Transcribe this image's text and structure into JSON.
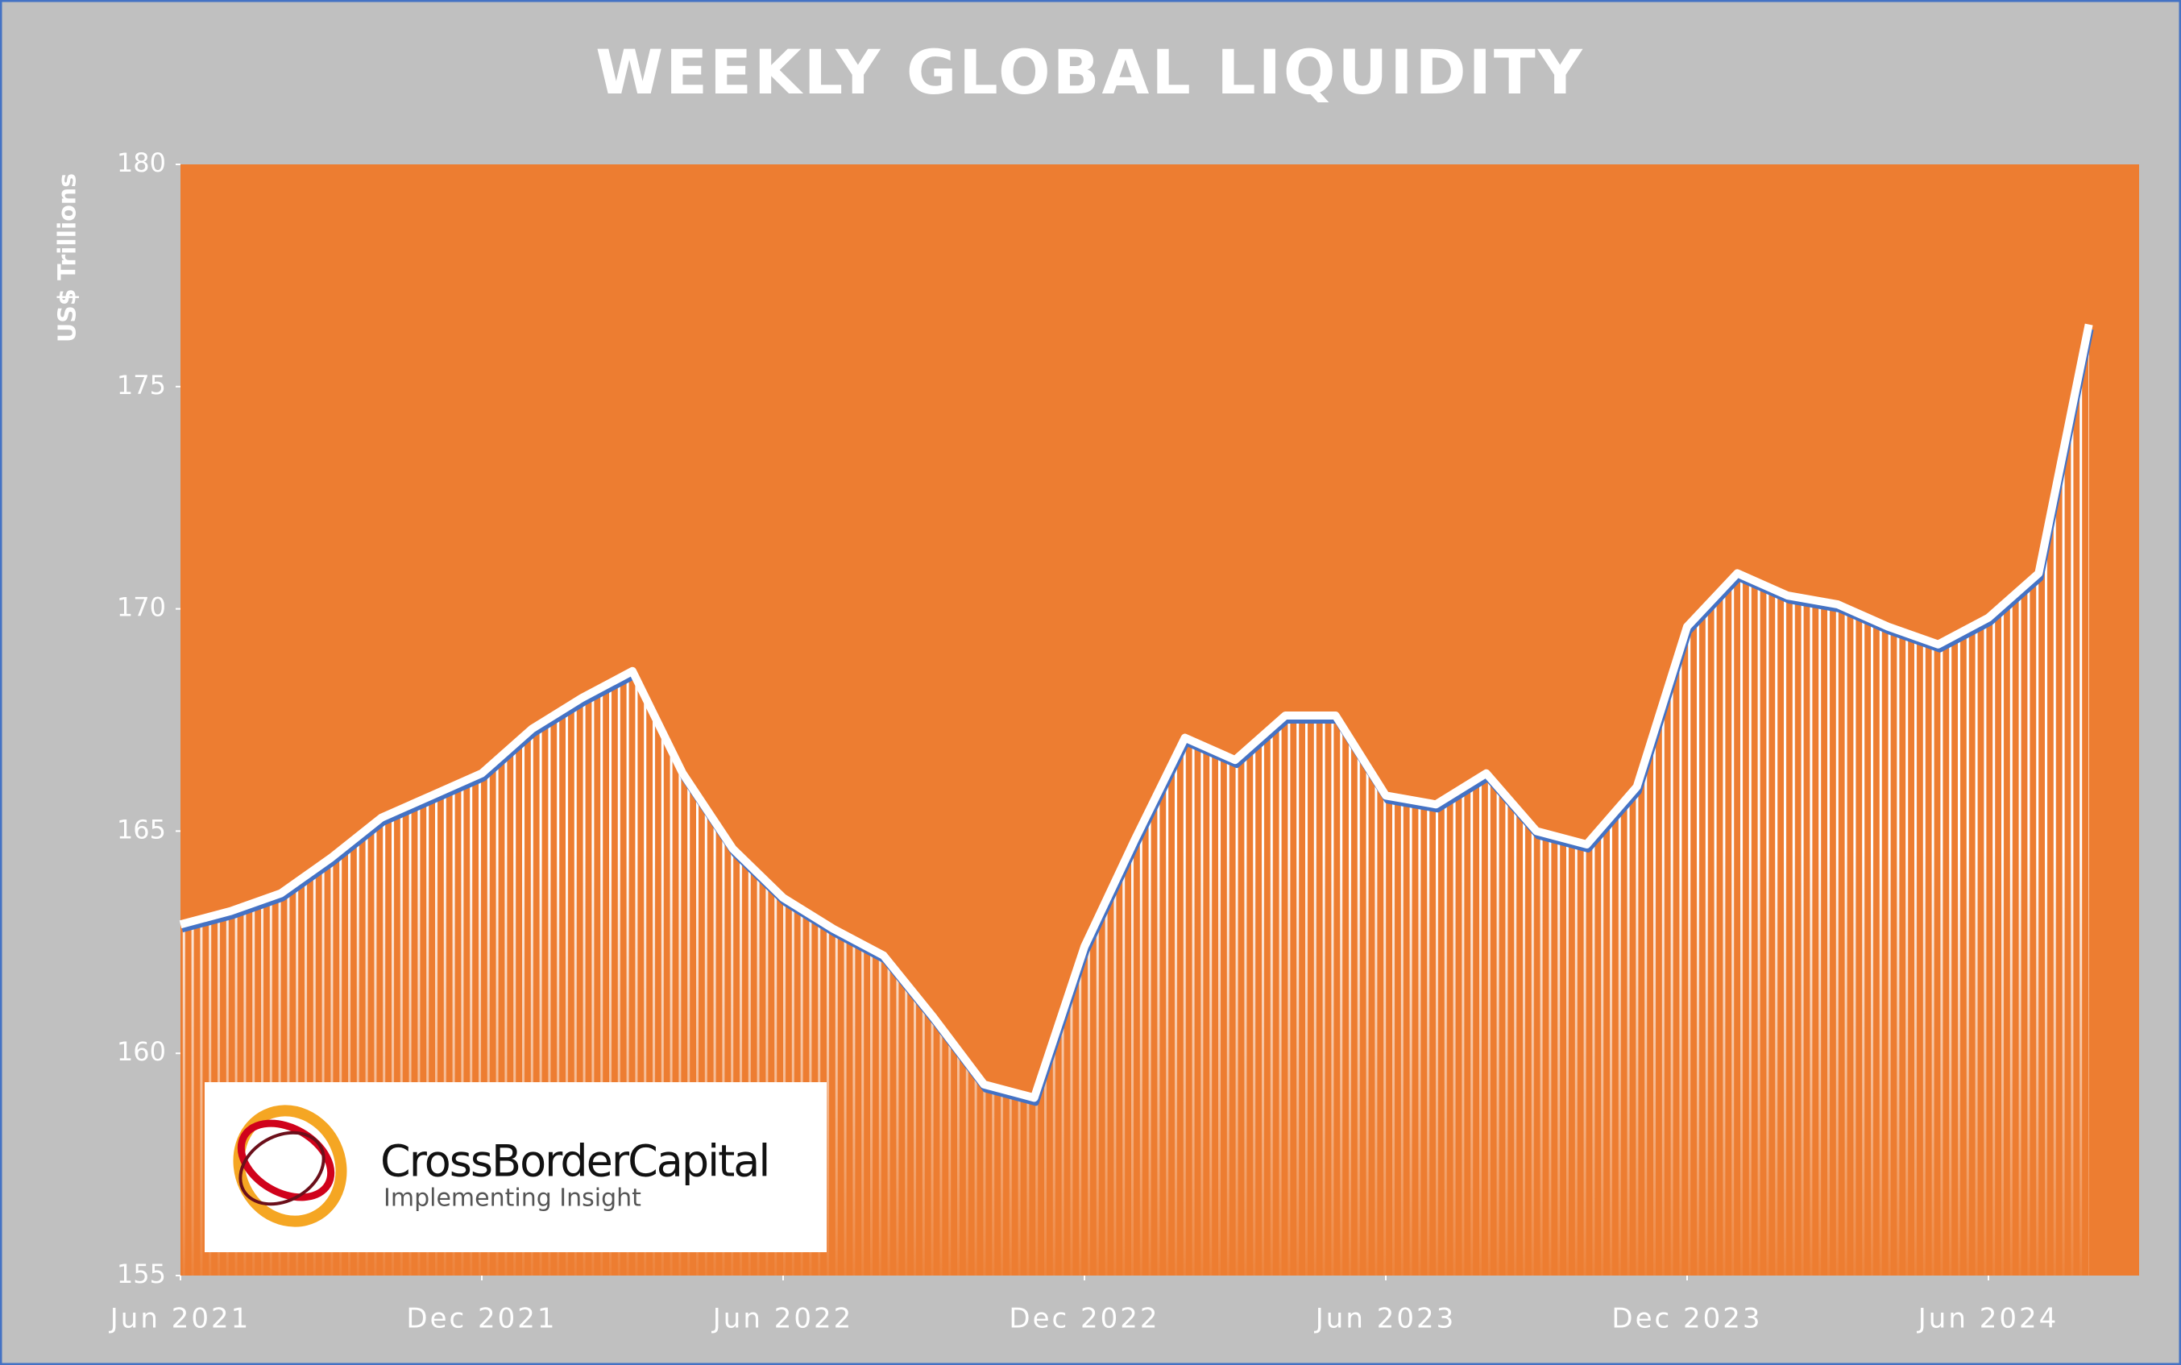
{
  "chart_data": {
    "type": "line",
    "title": "WEEKLY GLOBAL LIQUIDITY",
    "y_label": "US$ Trillions",
    "x": [
      "2021-06",
      "2021-07",
      "2021-08",
      "2021-09",
      "2021-10",
      "2021-11",
      "2021-12",
      "2022-01",
      "2022-02",
      "2022-03",
      "2022-04",
      "2022-05",
      "2022-06",
      "2022-07",
      "2022-08",
      "2022-09",
      "2022-10",
      "2022-11",
      "2022-12",
      "2023-01",
      "2023-02",
      "2023-03",
      "2023-04",
      "2023-05",
      "2023-06",
      "2023-07",
      "2023-08",
      "2023-09",
      "2023-10",
      "2023-11",
      "2023-12",
      "2024-01",
      "2024-02",
      "2024-03",
      "2024-04",
      "2024-05",
      "2024-06",
      "2024-07",
      "2024-08"
    ],
    "series": [
      {
        "name": "Global Liquidity",
        "color": "#4472c4",
        "values": [
          162.9,
          163.2,
          163.6,
          164.4,
          165.3,
          165.8,
          166.3,
          167.3,
          168.0,
          168.6,
          166.3,
          164.6,
          163.5,
          162.8,
          162.2,
          160.8,
          159.3,
          159.0,
          162.4,
          164.8,
          167.1,
          166.6,
          167.6,
          167.6,
          165.8,
          165.6,
          166.3,
          165.0,
          164.7,
          166.0,
          169.6,
          170.8,
          170.3,
          170.1,
          169.6,
          169.2,
          169.8,
          170.8,
          176.4
        ]
      }
    ],
    "xlim": [
      "2021-06",
      "2024-09"
    ],
    "xticks": [
      {
        "value": "2021-06",
        "label": "Jun 2021"
      },
      {
        "value": "2021-12",
        "label": "Dec 2021"
      },
      {
        "value": "2022-06",
        "label": "Jun 2022"
      },
      {
        "value": "2022-12",
        "label": "Dec 2022"
      },
      {
        "value": "2023-06",
        "label": "Jun 2023"
      },
      {
        "value": "2023-12",
        "label": "Dec 2023"
      },
      {
        "value": "2024-06",
        "label": "Jun 2024"
      }
    ],
    "ylim": [
      155,
      180
    ],
    "yticks": [
      155,
      160,
      165,
      170,
      175,
      180
    ],
    "plot_color": "#ed7d31",
    "background": "#c0c0c0"
  },
  "logo": {
    "name": "CrossBorderCapital",
    "tagline": "Implementing Insight"
  }
}
